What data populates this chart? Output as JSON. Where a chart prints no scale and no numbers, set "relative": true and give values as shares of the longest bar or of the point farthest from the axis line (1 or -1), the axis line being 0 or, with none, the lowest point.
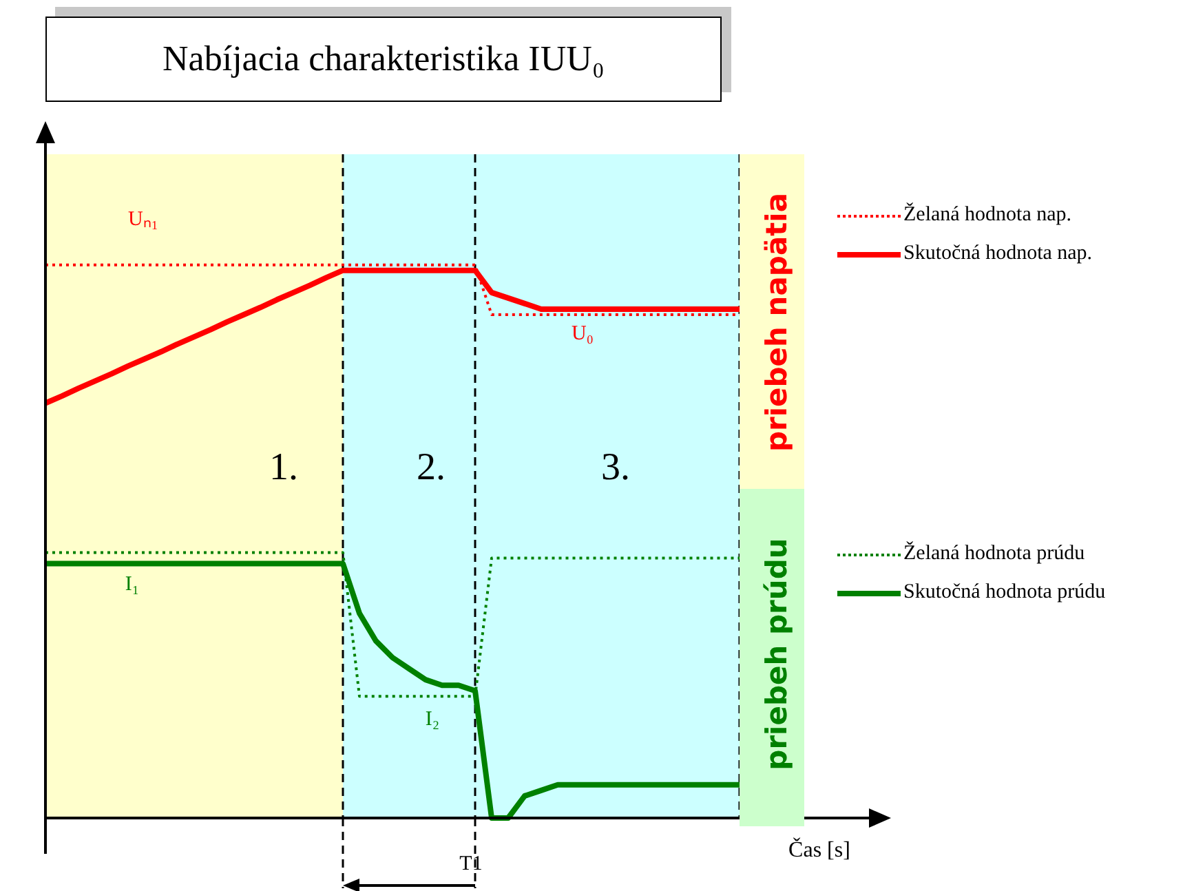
{
  "chart_data": {
    "type": "line",
    "title": "Nabíjacia charakteristika IUU₀",
    "xlabel": "Čas [s]",
    "relative": true,
    "tick_labels": false,
    "grid": "x",
    "legend": "right",
    "categories": [
      null,
      null,
      null,
      null,
      null,
      null,
      null,
      null,
      null,
      null,
      null,
      null,
      null,
      null,
      null,
      null,
      null,
      null,
      null,
      null,
      null,
      null,
      null,
      null,
      null,
      null,
      null,
      null,
      null,
      null,
      null,
      null,
      null,
      null,
      null,
      null,
      null,
      null,
      null,
      null,
      null,
      null,
      null,
      null,
      null,
      null,
      null,
      null,
      null,
      null,
      null
    ],
    "series": [
      {
        "name": "Želaná hodnota nap.",
        "color": "#ff0000",
        "line_style": "dotted",
        "values": [
          1,
          1,
          1,
          1,
          1,
          1,
          1,
          1,
          1,
          1,
          1,
          1,
          1,
          1,
          1,
          1,
          1,
          1,
          1,
          1,
          1,
          1,
          1,
          1,
          1,
          1,
          1,
          0.91,
          0.91,
          0.91,
          0.91,
          0.91,
          0.91,
          0.91,
          0.91,
          0.91,
          0.91,
          0.91,
          0.91,
          0.91,
          0.91,
          0.91,
          0.91,
          null,
          null,
          null,
          null,
          null,
          null,
          null,
          null
        ]
      },
      {
        "name": "Skutočná hodnota nap.",
        "color": "#ff0000",
        "line_style": "solid",
        "values": [
          0.75,
          0.763,
          0.777,
          0.79,
          0.803,
          0.817,
          0.83,
          0.843,
          0.857,
          0.87,
          0.883,
          0.897,
          0.91,
          0.923,
          0.937,
          0.95,
          0.963,
          0.977,
          0.99,
          0.99,
          0.99,
          0.99,
          0.99,
          0.99,
          0.99,
          0.99,
          0.99,
          0.95,
          0.94,
          0.93,
          0.92,
          0.92,
          0.92,
          0.92,
          0.92,
          0.92,
          0.92,
          0.92,
          0.92,
          0.92,
          0.92,
          0.92,
          0.92,
          null,
          null,
          null,
          null,
          null,
          null,
          null,
          null
        ]
      },
      {
        "name": "Želaná hodnota prúdu",
        "color": "#008000",
        "line_style": "dotted",
        "values": [
          0.48,
          0.48,
          0.48,
          0.48,
          0.48,
          0.48,
          0.48,
          0.48,
          0.48,
          0.48,
          0.48,
          0.48,
          0.48,
          0.48,
          0.48,
          0.48,
          0.48,
          0.48,
          0.48,
          0.22,
          0.22,
          0.22,
          0.22,
          0.22,
          0.22,
          0.22,
          0.22,
          0.47,
          0.47,
          0.47,
          0.47,
          0.47,
          0.47,
          0.47,
          0.47,
          0.47,
          0.47,
          0.47,
          0.47,
          0.47,
          0.47,
          0.47,
          0.47,
          null,
          null,
          null,
          null,
          null,
          null,
          null,
          null
        ]
      },
      {
        "name": "Skutočná hodnota prúdu",
        "color": "#008000",
        "line_style": "solid",
        "values": [
          0.46,
          0.46,
          0.46,
          0.46,
          0.46,
          0.46,
          0.46,
          0.46,
          0.46,
          0.46,
          0.46,
          0.46,
          0.46,
          0.46,
          0.46,
          0.46,
          0.46,
          0.46,
          0.46,
          0.37,
          0.32,
          0.29,
          0.27,
          0.25,
          0.24,
          0.24,
          0.23,
          0,
          0,
          0.04,
          0.05,
          0.06,
          0.06,
          0.06,
          0.06,
          0.06,
          0.06,
          0.06,
          0.06,
          0.06,
          0.06,
          0.06,
          0.06,
          null,
          null,
          null,
          null,
          null,
          null,
          null,
          null
        ]
      }
    ],
    "annotations": [
      "Uₙ₁",
      "U₀",
      "I₁",
      "I₂",
      "T1",
      "priebeh napätia",
      "priebeh prúdu",
      "1.",
      "2.",
      "3."
    ]
  }
}
